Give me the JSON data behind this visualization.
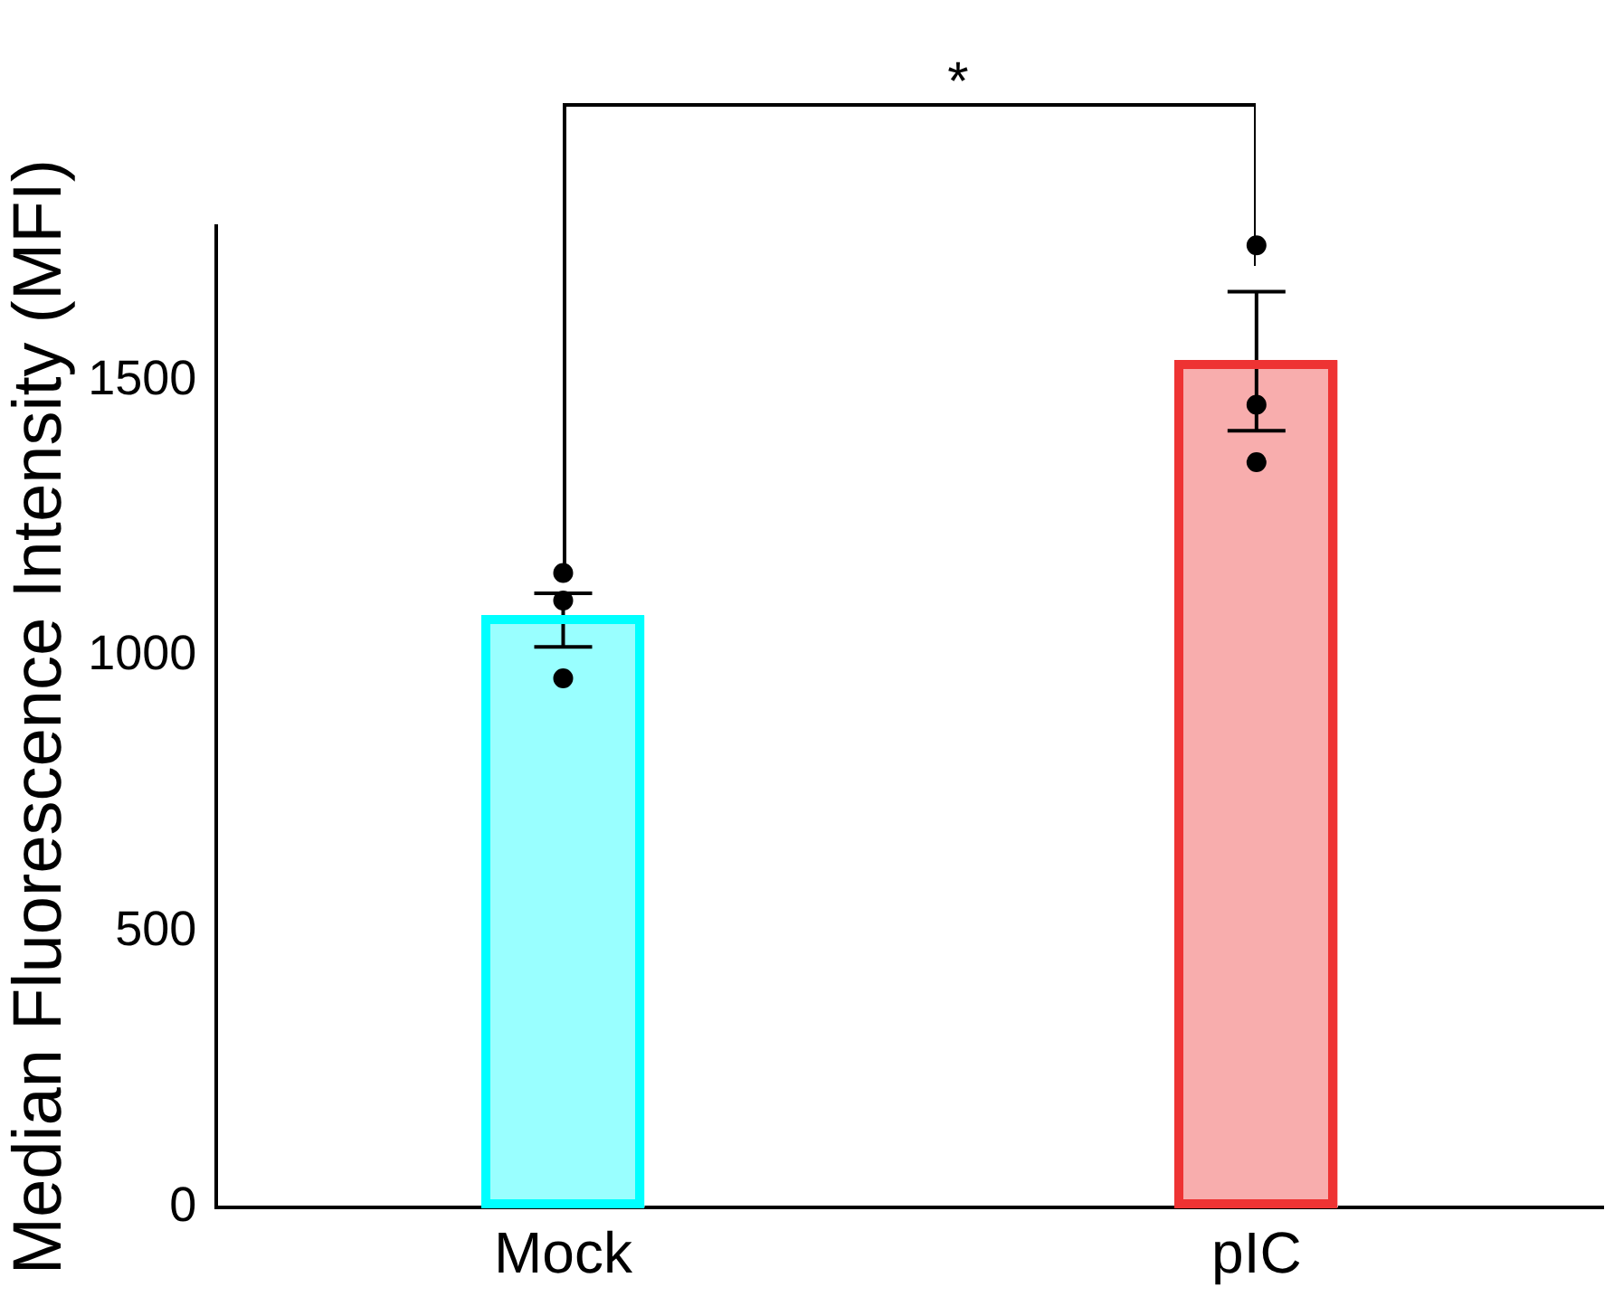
{
  "chart_data": {
    "type": "bar",
    "ylabel": "Median Fluorescence Intensity (MFI)",
    "categories": [
      "Mock",
      "pIC"
    ],
    "values": [
      1074,
      1537
    ],
    "colors": [
      "#00ffff",
      "#ee3333"
    ],
    "errors": [
      [
        1017,
        1114
      ],
      [
        1409,
        1661
      ]
    ],
    "series": [
      {
        "type": "scatter",
        "x": [
          "Mock",
          "Mock",
          "Mock",
          "pIC",
          "pIC",
          "pIC"
        ],
        "values": [
          1151,
          960,
          1101,
          1745,
          1456,
          1352
        ],
        "color": "#000000",
        "marker": "circle"
      }
    ],
    "ylim": [
      0,
      1780
    ],
    "yticks": [
      0,
      500,
      1000,
      1500
    ],
    "grid": false,
    "legend": false,
    "annotations": [
      "*"
    ]
  }
}
